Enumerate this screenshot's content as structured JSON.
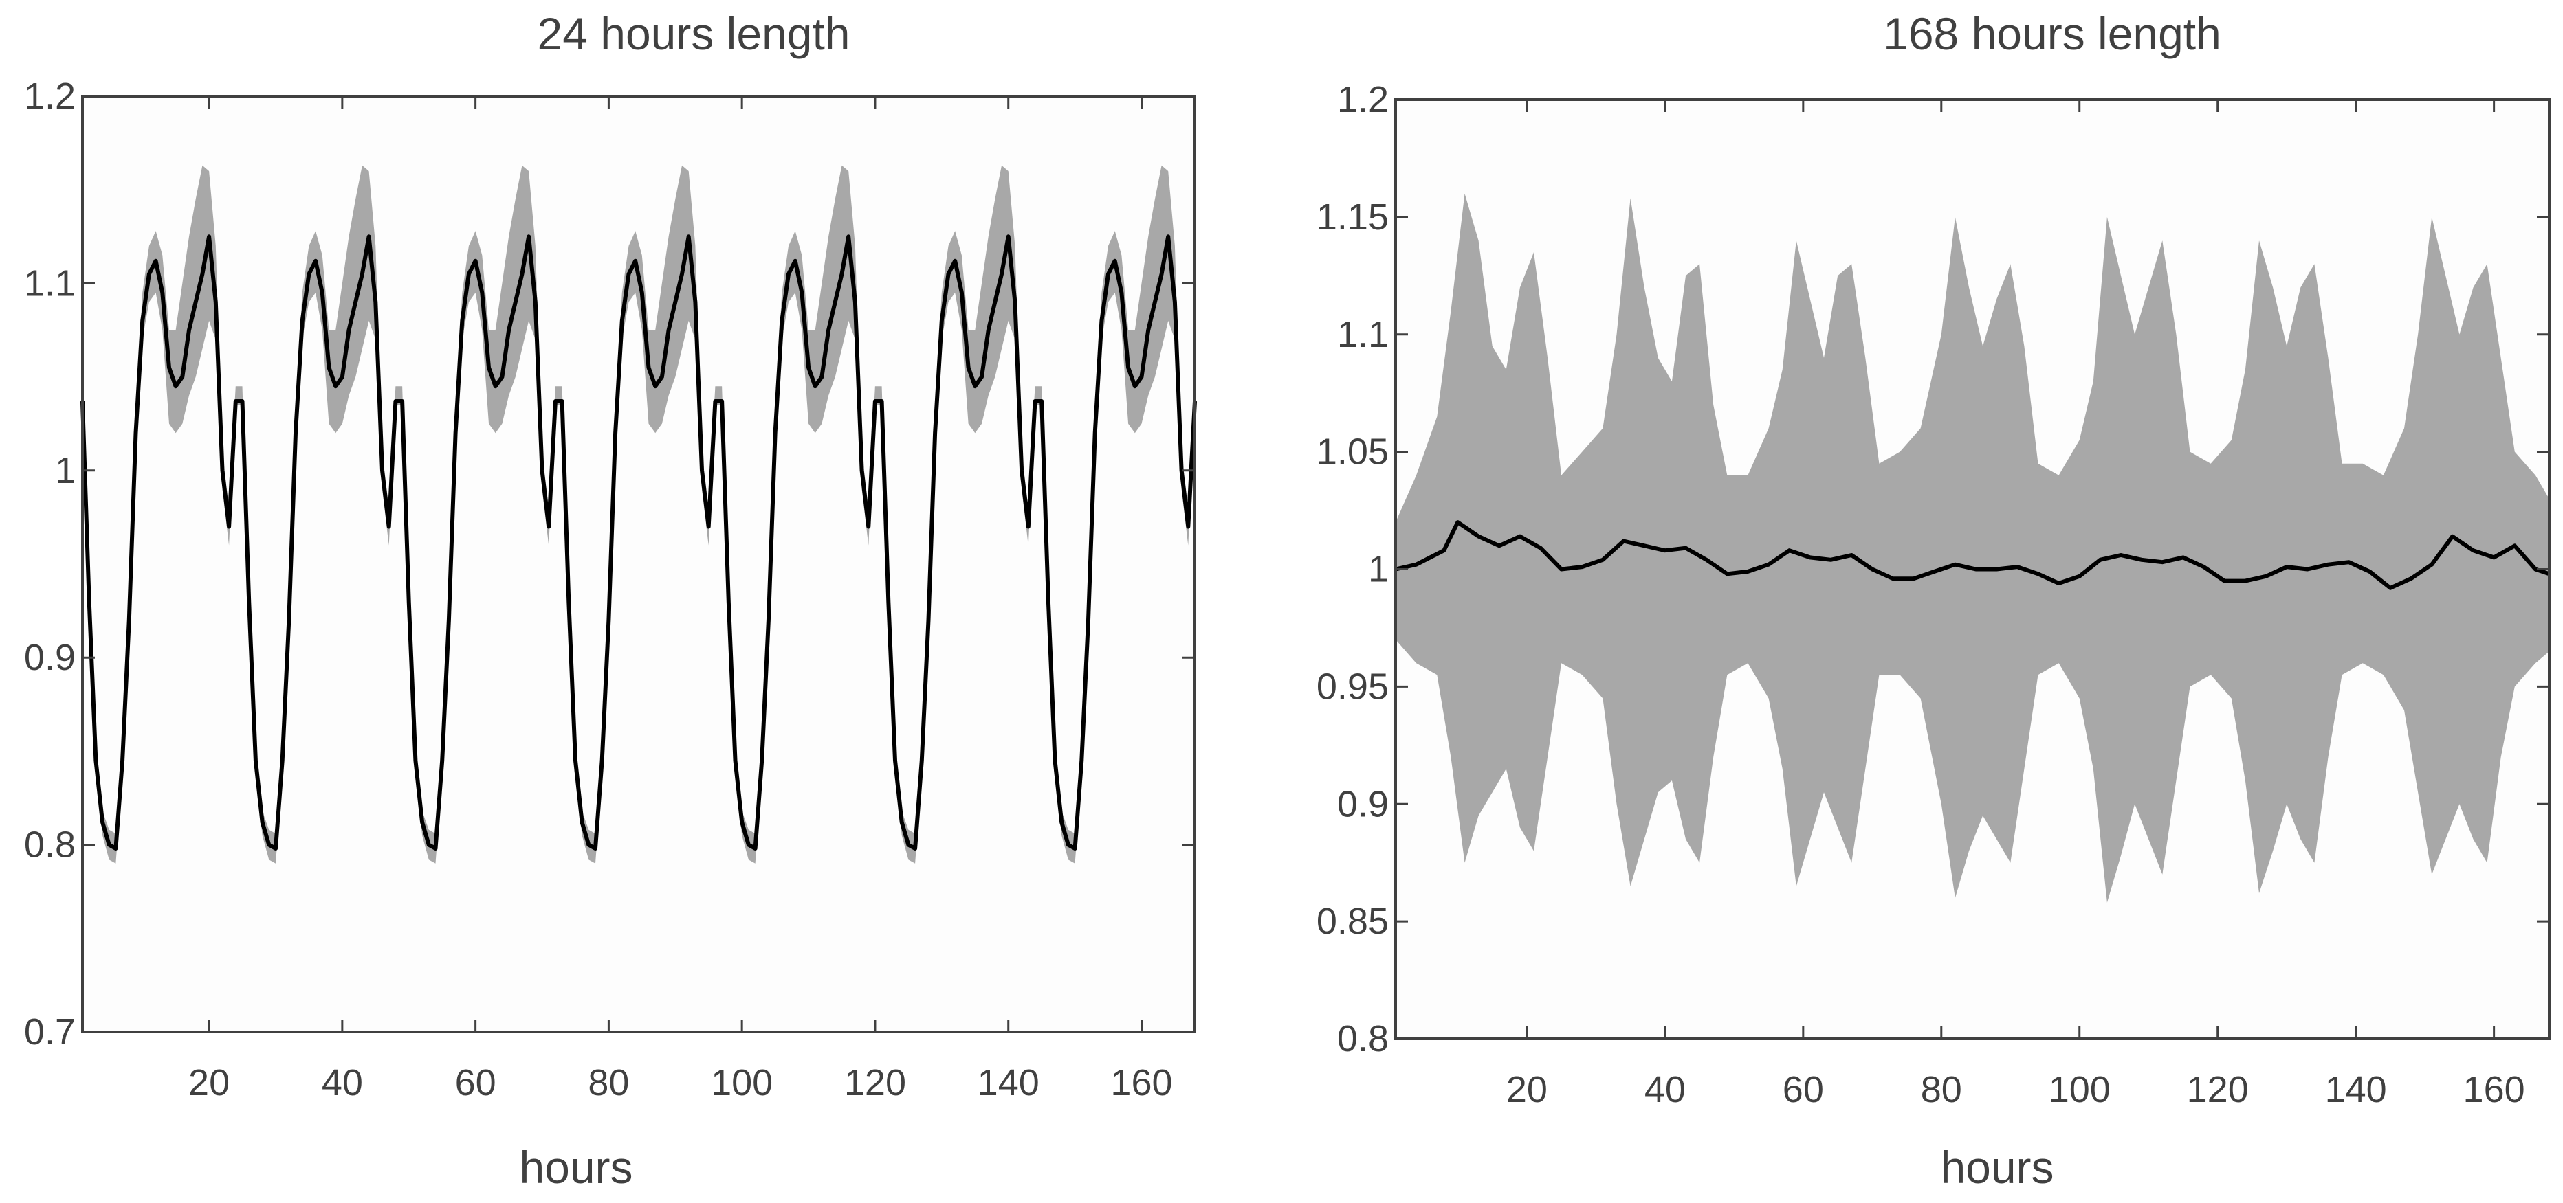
{
  "chart_data": [
    {
      "type": "line",
      "title": "24 hours length",
      "xlabel": "hours",
      "ylabel": "",
      "xlim": [
        1,
        168
      ],
      "ylim": [
        0.7,
        1.2
      ],
      "xticks": [
        20,
        40,
        60,
        80,
        100,
        120,
        140,
        160
      ],
      "yticks": [
        0.7,
        0.8,
        0.9,
        1,
        1.1,
        1.2
      ],
      "ytick_labels": [
        "0.7",
        "0.8",
        "0.9",
        "1",
        "1.1",
        "1.2"
      ],
      "grid": false,
      "mean_line_color": "#000000",
      "band_color": "#a8a8a8",
      "background_color": "#fdfdfd",
      "period_hours": 24,
      "profile_hours": [
        1,
        2,
        3,
        4,
        5,
        6,
        7,
        8,
        9,
        10,
        11,
        12,
        13,
        14,
        15,
        16,
        17,
        18,
        19,
        20,
        21,
        22,
        23,
        24
      ],
      "mean_profile": [
        1.037,
        0.93,
        0.845,
        0.812,
        0.8,
        0.798,
        0.845,
        0.92,
        1.02,
        1.08,
        1.105,
        1.112,
        1.095,
        1.055,
        1.045,
        1.05,
        1.075,
        1.09,
        1.105,
        1.125,
        1.09,
        1.0,
        0.97,
        1.037
      ],
      "lower_profile": [
        1.035,
        0.925,
        0.84,
        0.805,
        0.792,
        0.79,
        0.838,
        0.912,
        1.01,
        1.07,
        1.09,
        1.095,
        1.075,
        1.025,
        1.02,
        1.025,
        1.04,
        1.05,
        1.065,
        1.08,
        1.07,
        0.99,
        0.96,
        1.035
      ],
      "upper_profile": [
        1.045,
        0.935,
        0.85,
        0.818,
        0.808,
        0.806,
        0.852,
        0.928,
        1.03,
        1.095,
        1.12,
        1.128,
        1.115,
        1.075,
        1.075,
        1.1,
        1.125,
        1.145,
        1.163,
        1.16,
        1.12,
        1.01,
        0.98,
        1.045
      ]
    },
    {
      "type": "line",
      "title": "168 hours length",
      "xlabel": "hours",
      "ylabel": "",
      "xlim": [
        1,
        168
      ],
      "ylim": [
        0.8,
        1.2
      ],
      "xticks": [
        20,
        40,
        60,
        80,
        100,
        120,
        140,
        160
      ],
      "yticks": [
        0.8,
        0.85,
        0.9,
        0.95,
        1,
        1.05,
        1.1,
        1.15,
        1.2
      ],
      "ytick_labels": [
        "0.8",
        "0.85",
        "0.9",
        "0.95",
        "1",
        "1.05",
        "1.1",
        "1.15",
        "1.2"
      ],
      "grid": false,
      "mean_line_color": "#000000",
      "band_color": "#a8a8a8",
      "background_color": "#fdfdfd",
      "mean_points": [
        [
          1,
          1.0
        ],
        [
          4,
          1.002
        ],
        [
          8,
          1.008
        ],
        [
          10,
          1.02
        ],
        [
          13,
          1.014
        ],
        [
          16,
          1.01
        ],
        [
          19,
          1.014
        ],
        [
          22,
          1.009
        ],
        [
          25,
          1.0
        ],
        [
          28,
          1.001
        ],
        [
          31,
          1.004
        ],
        [
          34,
          1.012
        ],
        [
          37,
          1.01
        ],
        [
          40,
          1.008
        ],
        [
          43,
          1.009
        ],
        [
          46,
          1.004
        ],
        [
          49,
          0.998
        ],
        [
          52,
          0.999
        ],
        [
          55,
          1.002
        ],
        [
          58,
          1.008
        ],
        [
          61,
          1.005
        ],
        [
          64,
          1.004
        ],
        [
          67,
          1.006
        ],
        [
          70,
          1.0
        ],
        [
          73,
          0.996
        ],
        [
          76,
          0.996
        ],
        [
          79,
          0.999
        ],
        [
          82,
          1.002
        ],
        [
          85,
          1.0
        ],
        [
          88,
          1.0
        ],
        [
          91,
          1.001
        ],
        [
          94,
          0.998
        ],
        [
          97,
          0.994
        ],
        [
          100,
          0.997
        ],
        [
          103,
          1.004
        ],
        [
          106,
          1.006
        ],
        [
          109,
          1.004
        ],
        [
          112,
          1.003
        ],
        [
          115,
          1.005
        ],
        [
          118,
          1.001
        ],
        [
          121,
          0.995
        ],
        [
          124,
          0.995
        ],
        [
          127,
          0.997
        ],
        [
          130,
          1.001
        ],
        [
          133,
          1.0
        ],
        [
          136,
          1.002
        ],
        [
          139,
          1.003
        ],
        [
          142,
          0.999
        ],
        [
          145,
          0.992
        ],
        [
          148,
          0.996
        ],
        [
          151,
          1.002
        ],
        [
          154,
          1.014
        ],
        [
          157,
          1.008
        ],
        [
          160,
          1.005
        ],
        [
          163,
          1.01
        ],
        [
          166,
          1.0
        ],
        [
          168,
          0.998
        ]
      ],
      "upper_points": [
        [
          1,
          1.02
        ],
        [
          4,
          1.04
        ],
        [
          7,
          1.065
        ],
        [
          9,
          1.11
        ],
        [
          11,
          1.16
        ],
        [
          13,
          1.14
        ],
        [
          15,
          1.095
        ],
        [
          17,
          1.085
        ],
        [
          19,
          1.12
        ],
        [
          21,
          1.135
        ],
        [
          23,
          1.09
        ],
        [
          25,
          1.04
        ],
        [
          28,
          1.05
        ],
        [
          31,
          1.06
        ],
        [
          33,
          1.1
        ],
        [
          35,
          1.158
        ],
        [
          37,
          1.12
        ],
        [
          39,
          1.09
        ],
        [
          41,
          1.08
        ],
        [
          43,
          1.125
        ],
        [
          45,
          1.13
        ],
        [
          47,
          1.07
        ],
        [
          49,
          1.04
        ],
        [
          52,
          1.04
        ],
        [
          55,
          1.06
        ],
        [
          57,
          1.085
        ],
        [
          59,
          1.14
        ],
        [
          61,
          1.115
        ],
        [
          63,
          1.09
        ],
        [
          65,
          1.125
        ],
        [
          67,
          1.13
        ],
        [
          69,
          1.09
        ],
        [
          71,
          1.045
        ],
        [
          74,
          1.05
        ],
        [
          77,
          1.06
        ],
        [
          80,
          1.1
        ],
        [
          82,
          1.15
        ],
        [
          84,
          1.12
        ],
        [
          86,
          1.095
        ],
        [
          88,
          1.115
        ],
        [
          90,
          1.13
        ],
        [
          92,
          1.095
        ],
        [
          94,
          1.045
        ],
        [
          97,
          1.04
        ],
        [
          100,
          1.055
        ],
        [
          102,
          1.08
        ],
        [
          104,
          1.15
        ],
        [
          106,
          1.125
        ],
        [
          108,
          1.1
        ],
        [
          110,
          1.12
        ],
        [
          112,
          1.14
        ],
        [
          114,
          1.1
        ],
        [
          116,
          1.05
        ],
        [
          119,
          1.045
        ],
        [
          122,
          1.055
        ],
        [
          124,
          1.085
        ],
        [
          126,
          1.14
        ],
        [
          128,
          1.12
        ],
        [
          130,
          1.095
        ],
        [
          132,
          1.12
        ],
        [
          134,
          1.13
        ],
        [
          136,
          1.09
        ],
        [
          138,
          1.045
        ],
        [
          141,
          1.045
        ],
        [
          144,
          1.04
        ],
        [
          147,
          1.06
        ],
        [
          149,
          1.1
        ],
        [
          151,
          1.15
        ],
        [
          153,
          1.125
        ],
        [
          155,
          1.1
        ],
        [
          157,
          1.12
        ],
        [
          159,
          1.13
        ],
        [
          161,
          1.09
        ],
        [
          163,
          1.05
        ],
        [
          166,
          1.04
        ],
        [
          168,
          1.03
        ]
      ],
      "lower_points": [
        [
          1,
          0.97
        ],
        [
          4,
          0.96
        ],
        [
          7,
          0.955
        ],
        [
          9,
          0.92
        ],
        [
          11,
          0.875
        ],
        [
          13,
          0.895
        ],
        [
          15,
          0.905
        ],
        [
          17,
          0.915
        ],
        [
          19,
          0.89
        ],
        [
          21,
          0.88
        ],
        [
          23,
          0.92
        ],
        [
          25,
          0.96
        ],
        [
          28,
          0.955
        ],
        [
          31,
          0.945
        ],
        [
          33,
          0.9
        ],
        [
          35,
          0.865
        ],
        [
          37,
          0.885
        ],
        [
          39,
          0.905
        ],
        [
          41,
          0.91
        ],
        [
          43,
          0.885
        ],
        [
          45,
          0.875
        ],
        [
          47,
          0.92
        ],
        [
          49,
          0.955
        ],
        [
          52,
          0.96
        ],
        [
          55,
          0.945
        ],
        [
          57,
          0.915
        ],
        [
          59,
          0.865
        ],
        [
          61,
          0.885
        ],
        [
          63,
          0.905
        ],
        [
          65,
          0.89
        ],
        [
          67,
          0.875
        ],
        [
          69,
          0.915
        ],
        [
          71,
          0.955
        ],
        [
          74,
          0.955
        ],
        [
          77,
          0.945
        ],
        [
          80,
          0.9
        ],
        [
          82,
          0.86
        ],
        [
          84,
          0.88
        ],
        [
          86,
          0.895
        ],
        [
          88,
          0.885
        ],
        [
          90,
          0.875
        ],
        [
          92,
          0.915
        ],
        [
          94,
          0.955
        ],
        [
          97,
          0.96
        ],
        [
          100,
          0.945
        ],
        [
          102,
          0.915
        ],
        [
          104,
          0.858
        ],
        [
          106,
          0.878
        ],
        [
          108,
          0.9
        ],
        [
          110,
          0.885
        ],
        [
          112,
          0.87
        ],
        [
          114,
          0.91
        ],
        [
          116,
          0.95
        ],
        [
          119,
          0.955
        ],
        [
          122,
          0.945
        ],
        [
          124,
          0.91
        ],
        [
          126,
          0.862
        ],
        [
          128,
          0.88
        ],
        [
          130,
          0.9
        ],
        [
          132,
          0.885
        ],
        [
          134,
          0.875
        ],
        [
          136,
          0.92
        ],
        [
          138,
          0.955
        ],
        [
          141,
          0.96
        ],
        [
          144,
          0.955
        ],
        [
          147,
          0.94
        ],
        [
          149,
          0.905
        ],
        [
          151,
          0.87
        ],
        [
          153,
          0.885
        ],
        [
          155,
          0.9
        ],
        [
          157,
          0.885
        ],
        [
          159,
          0.875
        ],
        [
          161,
          0.92
        ],
        [
          163,
          0.95
        ],
        [
          166,
          0.96
        ],
        [
          168,
          0.965
        ]
      ]
    }
  ]
}
